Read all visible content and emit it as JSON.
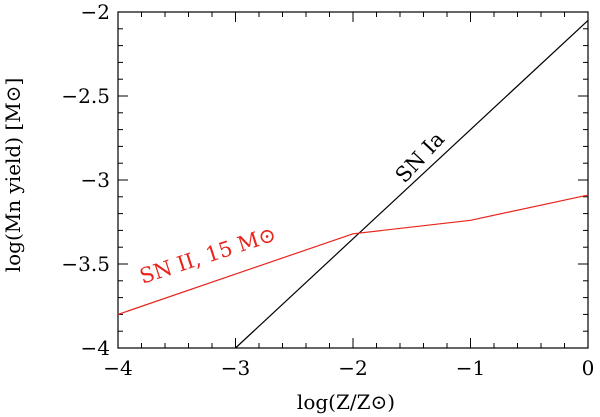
{
  "chart_data": {
    "type": "line",
    "xlabel": "log(Z/Z⊙)",
    "ylabel": "log(Mn yield) [M⊙]",
    "xlim": [
      -4,
      0
    ],
    "ylim": [
      -4,
      -2
    ],
    "x_ticks": [
      -4,
      -3,
      -2,
      -1,
      0
    ],
    "x_tick_labels": [
      "−4",
      "−3",
      "−2",
      "−1",
      "0"
    ],
    "y_ticks": [
      -4,
      -3.5,
      -3,
      -2.5,
      -2
    ],
    "y_tick_labels": [
      "−4",
      "−3.5",
      "−3",
      "−2.5",
      "−2"
    ],
    "grid": false,
    "series": [
      {
        "name": "SN Ia",
        "color": "#000000",
        "x": [
          -3,
          0
        ],
        "y": [
          -4,
          -2.05
        ]
      },
      {
        "name": "SN II, 15 M⊙",
        "color": "#e8241c",
        "x": [
          -4,
          -2,
          -1,
          0
        ],
        "y": [
          -3.8,
          -3.32,
          -3.24,
          -3.09
        ]
      }
    ]
  }
}
